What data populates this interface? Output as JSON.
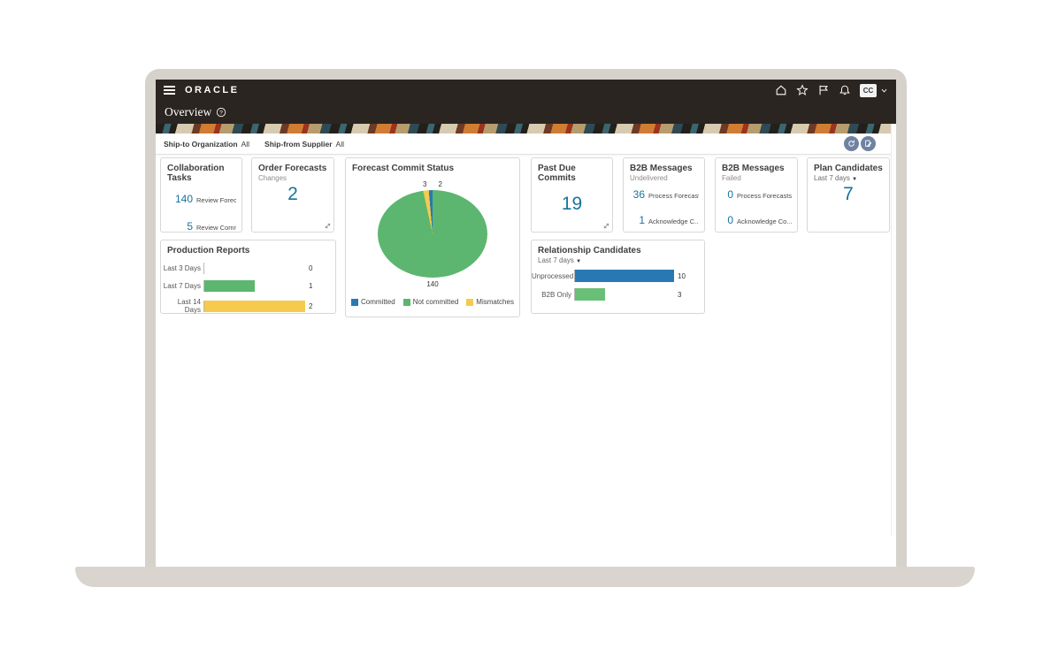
{
  "header": {
    "brand": "ORACLE",
    "page_title": "Overview",
    "user_initials": "CC"
  },
  "filter_bar": {
    "filters": [
      {
        "label": "Ship-to Organization",
        "value": "All"
      },
      {
        "label": "Ship-from Supplier",
        "value": "All"
      }
    ]
  },
  "cards": {
    "collaboration_tasks": {
      "title": "Collaboration Tasks",
      "rows": [
        {
          "value": "140",
          "label": "Review Foreca..."
        },
        {
          "value": "5",
          "label": "Review Comm..."
        }
      ]
    },
    "order_forecasts": {
      "title": "Order Forecasts",
      "subtitle": "Changes",
      "value": "2"
    },
    "forecast_commit_status": {
      "title": "Forecast Commit Status"
    },
    "past_due_commits": {
      "title": "Past Due Commits",
      "value": "19"
    },
    "b2b_messages_undelivered": {
      "title": "B2B Messages",
      "subtitle": "Undelivered",
      "rows": [
        {
          "value": "36",
          "label": "Process Forecasts"
        },
        {
          "value": "1",
          "label": "Acknowledge C..."
        }
      ]
    },
    "b2b_messages_failed": {
      "title": "B2B Messages",
      "subtitle": "Failed",
      "rows": [
        {
          "value": "0",
          "label": "Process Forecasts"
        },
        {
          "value": "0",
          "label": "Acknowledge Co..."
        }
      ]
    },
    "plan_candidates": {
      "title": "Plan Candidates",
      "filter_label": "Last 7 days",
      "value": "7"
    },
    "production_reports": {
      "title": "Production Reports"
    },
    "relationship_candidates": {
      "title": "Relationship Candidates",
      "filter_label": "Last 7 days"
    }
  },
  "chart_data": [
    {
      "id": "forecast_commit_status",
      "type": "pie",
      "title": "Forecast Commit Status",
      "slices": [
        {
          "label": "Committed",
          "value": 2,
          "color": "#2878b4"
        },
        {
          "label": "Not committed",
          "value": 140,
          "color": "#5cb66f"
        },
        {
          "label": "Mismatches",
          "value": 3,
          "color": "#f5ca4d"
        }
      ],
      "data_labels": {
        "top_left": "3",
        "top_right": "2",
        "bottom": "140"
      },
      "legend_position": "bottom"
    },
    {
      "id": "production_reports",
      "type": "bar",
      "orientation": "horizontal",
      "title": "Production Reports",
      "categories": [
        "Last 3 Days",
        "Last 7 Days",
        "Last 14 Days"
      ],
      "values": [
        0,
        1,
        2
      ],
      "colors": [
        "#5cb66f",
        "#5cb66f",
        "#f5ca4d"
      ],
      "xlim": [
        0,
        2
      ],
      "grid": false,
      "legend_position": "none"
    },
    {
      "id": "relationship_candidates",
      "type": "bar",
      "orientation": "horizontal",
      "title": "Relationship Candidates",
      "categories": [
        "Unprocessed",
        "B2B Only"
      ],
      "values": [
        10,
        3
      ],
      "colors": [
        "#2878b4",
        "#6abf77"
      ],
      "xlim": [
        0,
        10
      ],
      "grid": false,
      "legend_position": "none"
    }
  ],
  "colors": {
    "accent_number": "#17739d",
    "header_bg": "#2b2521",
    "round_button_bg": "#6f82a2"
  }
}
